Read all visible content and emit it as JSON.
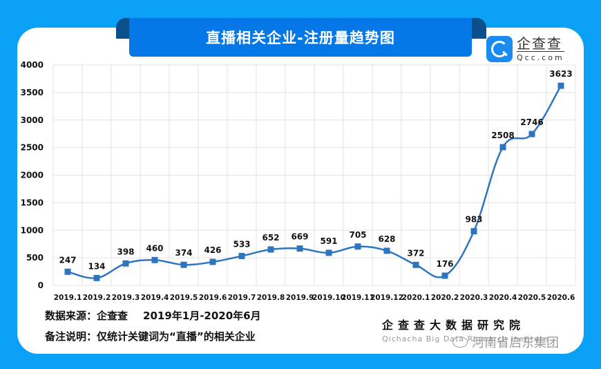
{
  "header": {
    "title": "直播相关企业-注册量趋势图"
  },
  "logo": {
    "name_cn": "企查查",
    "domain": "Qcc.com",
    "icon": "qcc-logo-icon"
  },
  "footer": {
    "source_label": "数据来源：企查查",
    "source_range": "2019年1月-2020年6月",
    "note": "备注说明：仅统计关键词为“直播”的相关企业",
    "institute_cn": "企查查大数据研究院",
    "institute_en": "Qichacha Big Data Research Institute",
    "wechat_watermark": "河南省启东集团",
    "wechat_icon": "wechat-icon"
  },
  "colors": {
    "background": "#0aa0f5",
    "banner": "#0677e6",
    "line": "#2e75c0",
    "marker": "#2e75c0",
    "grid": "#e2e2e2"
  },
  "chart_data": {
    "type": "line",
    "title": "直播相关企业-注册量趋势图",
    "xlabel": "",
    "ylabel": "",
    "ylim": [
      0,
      4000
    ],
    "yticks": [
      0,
      500,
      1000,
      1500,
      2000,
      2500,
      3000,
      3500,
      4000
    ],
    "grid": true,
    "legend": null,
    "categories": [
      "2019.1",
      "2019.2",
      "2019.3",
      "2019.4",
      "2019.5",
      "2019.6",
      "2019.7",
      "2019.8",
      "2019.9",
      "2019.10",
      "2019.11",
      "2019.12",
      "2020.1",
      "2020.2",
      "2020.3",
      "2020.4",
      "2020.5",
      "2020.6"
    ],
    "series": [
      {
        "name": "注册量",
        "values": [
          247,
          134,
          398,
          460,
          374,
          426,
          533,
          652,
          669,
          591,
          705,
          628,
          372,
          176,
          983,
          2508,
          2746,
          3623
        ],
        "marker": "square",
        "smooth": true
      }
    ]
  }
}
